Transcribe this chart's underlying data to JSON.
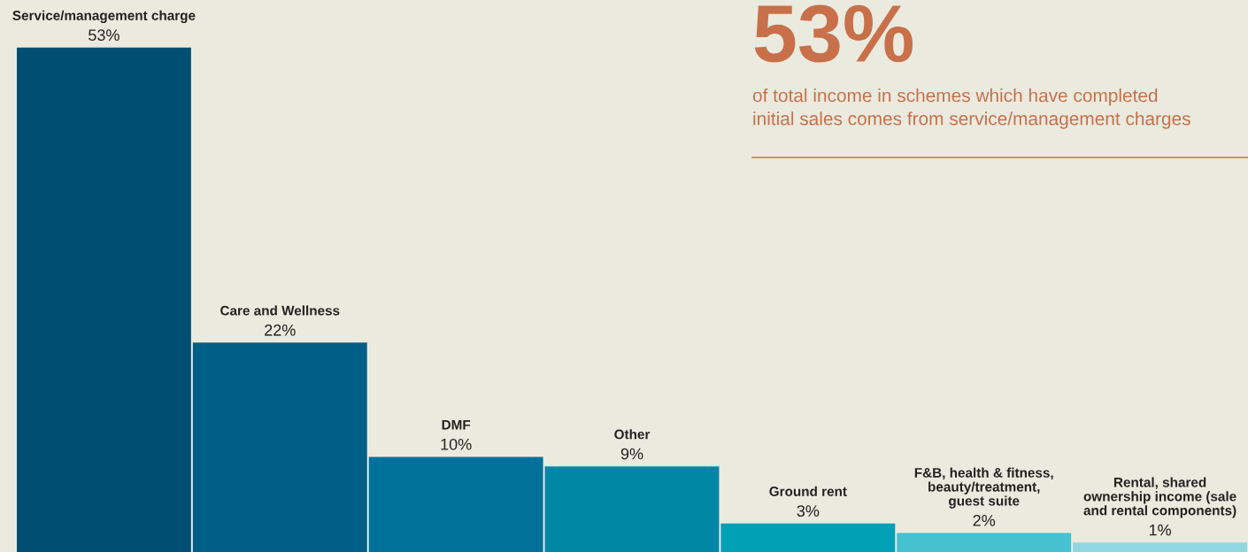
{
  "chart_data": {
    "type": "bar",
    "categories": [
      "Service/management charge",
      "Care and Wellness",
      "DMF",
      "Other",
      "Ground rent",
      "F&B, health & fitness,\nbeauty/treatment,\nguest suite",
      "Rental, shared\nownership income (sale\nand rental components)"
    ],
    "values": [
      53,
      22,
      10,
      9,
      3,
      2,
      1
    ],
    "value_labels": [
      "53%",
      "22%",
      "10%",
      "9%",
      "3%",
      "2%",
      "1%"
    ],
    "colors": [
      "#004f73",
      "#005f86",
      "#00729a",
      "#0087a6",
      "#00a0b6",
      "#45c1d0",
      "#8fd7e2"
    ],
    "ylim": [
      0,
      58
    ],
    "annotations": [
      "53%",
      "of total income in schemes which have completed\ninitial sales comes from service/management charges"
    ]
  }
}
